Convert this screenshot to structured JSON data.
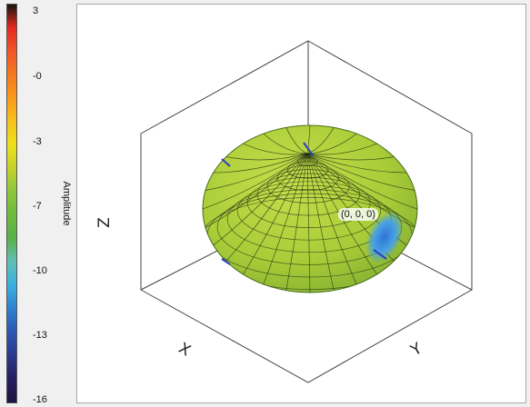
{
  "colorbar": {
    "title": "Amplitude",
    "ticks": [
      "3",
      "-0",
      "-3",
      "-7",
      "-10",
      "-13",
      "-16"
    ],
    "colors": [
      "#1a1410",
      "#e82a20",
      "#f0562a",
      "#f5781e",
      "#f89a18",
      "#f7c21a",
      "#eee11a",
      "#c2d22c",
      "#8cc63d",
      "#6cbb3c",
      "#58b24a",
      "#5fbfb8",
      "#3ab0e0",
      "#2f7fd0",
      "#2d55b0",
      "#2b3a8e",
      "#261e62",
      "#1a1440"
    ]
  },
  "viewport": {
    "origin_label": "(0, 0, 0)",
    "axis_z": "Z",
    "axis_x": "X",
    "axis_y": "Y",
    "surface_color": "#b3d23a",
    "blob_color": "#3d88e0",
    "wire_color": "#1e2a10"
  }
}
